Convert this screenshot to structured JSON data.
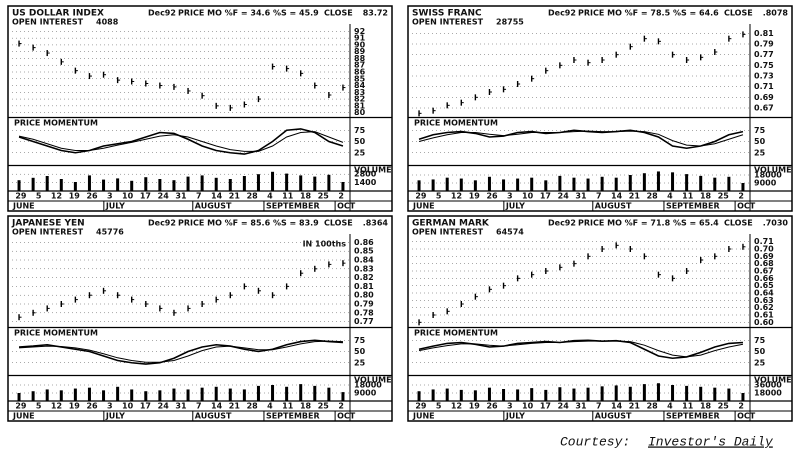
{
  "chart_data": [
    {
      "type": "stock",
      "title": "US DOLLAR INDEX",
      "contract": "Dec92",
      "study": "PRICE MO %F = 34.6 %S = 45.9",
      "close_label": "CLOSE",
      "close": "83.72",
      "open_interest_label": "OPEN INTEREST",
      "open_interest": "4088",
      "price": {
        "values": [
          90.2,
          89.6,
          88.8,
          87.5,
          86.2,
          85.4,
          85.6,
          84.8,
          84.6,
          84.3,
          84.0,
          83.8,
          83.2,
          82.5,
          81.0,
          80.7,
          81.2,
          82.0,
          86.8,
          86.5,
          85.8,
          84.0,
          82.6,
          83.7
        ],
        "ylim": [
          79.5,
          92.5
        ],
        "yticks": [
          80,
          81,
          82,
          83,
          84,
          85,
          86,
          87,
          88,
          89,
          90,
          91,
          92
        ]
      },
      "momentum": {
        "label": "PRICE MOMENTUM",
        "fast": [
          60,
          50,
          40,
          30,
          25,
          30,
          40,
          45,
          50,
          60,
          70,
          68,
          55,
          40,
          30,
          25,
          22,
          30,
          50,
          75,
          78,
          70,
          50,
          40
        ],
        "slow": [
          62,
          55,
          45,
          35,
          30,
          30,
          35,
          42,
          48,
          55,
          62,
          65,
          60,
          50,
          40,
          32,
          28,
          28,
          40,
          60,
          70,
          72,
          60,
          48
        ],
        "ylim": [
          0,
          100
        ],
        "yticks": [
          25,
          50,
          75
        ]
      },
      "volume": {
        "label": "VOLUME",
        "values": [
          1800,
          2200,
          2500,
          2000,
          1500,
          2600,
          1900,
          2100,
          1700,
          2300,
          2000,
          1800,
          2400,
          2600,
          2200,
          2000,
          2500,
          2800,
          3200,
          2900,
          2600,
          2400,
          2700,
          1500
        ],
        "ylim": [
          0,
          4000
        ],
        "yticks": [
          1400,
          2800
        ]
      },
      "x_labels": [
        "29",
        "5",
        "12",
        "19",
        "26",
        "3",
        "10",
        "17",
        "24",
        "31",
        "7",
        "14",
        "21",
        "28",
        "4",
        "11",
        "18",
        "25",
        "2"
      ],
      "months": [
        "JUNE",
        "JULY",
        "AUGUST",
        "SEPTEMBER",
        "OCT"
      ]
    },
    {
      "type": "stock",
      "title": "SWISS FRANC",
      "contract": "Dec92",
      "study": "PRICE MO %F = 78.5 %S = 64.6",
      "close_label": "CLOSE",
      "close": ".8078",
      "open_interest_label": "OPEN INTEREST",
      "open_interest": "28755",
      "price": {
        "values": [
          0.66,
          0.665,
          0.675,
          0.68,
          0.69,
          0.7,
          0.705,
          0.715,
          0.725,
          0.74,
          0.75,
          0.76,
          0.755,
          0.76,
          0.77,
          0.785,
          0.8,
          0.795,
          0.77,
          0.76,
          0.765,
          0.775,
          0.8,
          0.808
        ],
        "ylim": [
          0.655,
          0.82
        ],
        "yticks": [
          0.67,
          0.69,
          0.71,
          0.73,
          0.75,
          0.77,
          0.79,
          0.81
        ]
      },
      "momentum": {
        "label": "PRICE MOMENTUM",
        "fast": [
          55,
          65,
          70,
          72,
          68,
          60,
          62,
          70,
          72,
          68,
          70,
          75,
          72,
          70,
          72,
          75,
          70,
          60,
          40,
          35,
          40,
          50,
          65,
          72
        ],
        "slow": [
          50,
          58,
          65,
          70,
          70,
          66,
          63,
          66,
          70,
          70,
          70,
          72,
          73,
          72,
          72,
          73,
          72,
          66,
          52,
          42,
          40,
          45,
          55,
          65
        ],
        "ylim": [
          0,
          100
        ],
        "yticks": [
          25,
          50,
          75
        ]
      },
      "volume": {
        "label": "VOLUME",
        "values": [
          12000,
          13000,
          15000,
          14000,
          12000,
          16000,
          13000,
          14000,
          15000,
          12000,
          17000,
          15000,
          14000,
          16000,
          15000,
          18000,
          20000,
          22000,
          21000,
          19000,
          17000,
          15000,
          16000,
          9000
        ],
        "ylim": [
          0,
          27000
        ],
        "yticks": [
          9000,
          18000
        ]
      },
      "x_labels": [
        "29",
        "5",
        "12",
        "19",
        "26",
        "3",
        "10",
        "17",
        "24",
        "31",
        "7",
        "14",
        "21",
        "28",
        "4",
        "11",
        "18",
        "25",
        "2"
      ],
      "months": [
        "JUNE",
        "JULY",
        "AUGUST",
        "SEPTEMBER",
        "OCT"
      ]
    },
    {
      "type": "stock",
      "title": "JAPANESE YEN",
      "contract": "Dec92",
      "study": "PRICE MO %F = 85.6 %S = 83.9",
      "close_label": "CLOSE",
      "close": ".8364",
      "open_interest_label": "OPEN INTEREST",
      "open_interest": "45776",
      "note": "IN 100ths",
      "price": {
        "values": [
          0.775,
          0.78,
          0.785,
          0.79,
          0.795,
          0.8,
          0.805,
          0.8,
          0.795,
          0.79,
          0.785,
          0.78,
          0.785,
          0.79,
          0.795,
          0.8,
          0.81,
          0.805,
          0.8,
          0.81,
          0.825,
          0.83,
          0.835,
          0.8364
        ],
        "ylim": [
          0.765,
          0.865
        ],
        "yticks": [
          0.77,
          0.78,
          0.79,
          {
            "value": 0.8,
            "label": "0.80"
          },
          0.81,
          0.82,
          0.83,
          0.84,
          0.85,
          0.86
        ]
      },
      "momentum": {
        "label": "PRICE MOMENTUM",
        "fast": [
          60,
          62,
          65,
          60,
          55,
          50,
          40,
          30,
          25,
          22,
          25,
          35,
          50,
          60,
          65,
          62,
          55,
          50,
          55,
          65,
          72,
          75,
          72,
          70
        ],
        "slow": [
          58,
          60,
          62,
          61,
          58,
          53,
          45,
          36,
          30,
          26,
          26,
          30,
          40,
          52,
          60,
          62,
          58,
          54,
          54,
          60,
          67,
          72,
          73,
          72
        ],
        "ylim": [
          0,
          100
        ],
        "yticks": [
          25,
          50,
          75
        ]
      },
      "volume": {
        "label": "VOLUME",
        "values": [
          9000,
          11000,
          13000,
          12000,
          14000,
          15000,
          12000,
          16000,
          13000,
          11000,
          12000,
          14000,
          13000,
          15000,
          16000,
          14000,
          13000,
          17000,
          18000,
          16000,
          19000,
          17000,
          15000,
          10000
        ],
        "ylim": [
          0,
          27000
        ],
        "yticks": [
          9000,
          18000
        ]
      },
      "x_labels": [
        "29",
        "5",
        "12",
        "19",
        "26",
        "3",
        "10",
        "17",
        "24",
        "31",
        "7",
        "14",
        "21",
        "28",
        "4",
        "11",
        "18",
        "25",
        "2"
      ],
      "months": [
        "JUNE",
        "JULY",
        "AUGUST",
        "SEPTEMBER",
        "OCT"
      ]
    },
    {
      "type": "stock",
      "title": "GERMAN MARK",
      "contract": "Dec92",
      "study": "PRICE MO %F = 71.8 %S = 65.4",
      "close_label": "CLOSE",
      "close": ".7030",
      "open_interest_label": "OPEN INTEREST",
      "open_interest": "64574",
      "price": {
        "values": [
          0.6,
          0.61,
          0.615,
          0.625,
          0.635,
          0.645,
          0.65,
          0.66,
          0.665,
          0.67,
          0.675,
          0.68,
          0.69,
          0.7,
          0.705,
          0.7,
          0.69,
          0.665,
          0.66,
          0.67,
          0.685,
          0.69,
          0.7,
          0.703
        ],
        "ylim": [
          0.595,
          0.715
        ],
        "yticks": [
          {
            "value": 0.6,
            "label": "0.60"
          },
          0.61,
          0.62,
          0.63,
          0.64,
          0.65,
          0.66,
          0.67,
          0.68,
          0.69,
          {
            "value": 0.7,
            "label": "0.70"
          },
          0.71
        ]
      },
      "momentum": {
        "label": "PRICE MOMENTUM",
        "fast": [
          55,
          62,
          68,
          70,
          66,
          60,
          62,
          68,
          70,
          72,
          70,
          74,
          75,
          73,
          74,
          70,
          55,
          40,
          35,
          38,
          48,
          60,
          68,
          70
        ],
        "slow": [
          52,
          58,
          63,
          67,
          67,
          64,
          62,
          65,
          68,
          70,
          70,
          72,
          73,
          73,
          73,
          72,
          64,
          52,
          42,
          38,
          42,
          52,
          60,
          66
        ],
        "ylim": [
          0,
          100
        ],
        "yticks": [
          25,
          50,
          75
        ]
      },
      "volume": {
        "label": "VOLUME",
        "values": [
          22000,
          26000,
          28000,
          25000,
          24000,
          30000,
          27000,
          26000,
          29000,
          25000,
          31000,
          28000,
          30000,
          33000,
          35000,
          32000,
          38000,
          40000,
          36000,
          34000,
          32000,
          30000,
          28000,
          18000
        ],
        "ylim": [
          0,
          54000
        ],
        "yticks": [
          18000,
          36000
        ]
      },
      "x_labels": [
        "29",
        "5",
        "12",
        "19",
        "26",
        "3",
        "10",
        "17",
        "24",
        "31",
        "7",
        "14",
        "21",
        "28",
        "4",
        "11",
        "18",
        "25",
        "2"
      ],
      "months": [
        "JUNE",
        "JULY",
        "AUGUST",
        "SEPTEMBER",
        "OCT"
      ]
    }
  ],
  "footer": {
    "text": "Courtesy:",
    "source": "Investor's Daily"
  }
}
